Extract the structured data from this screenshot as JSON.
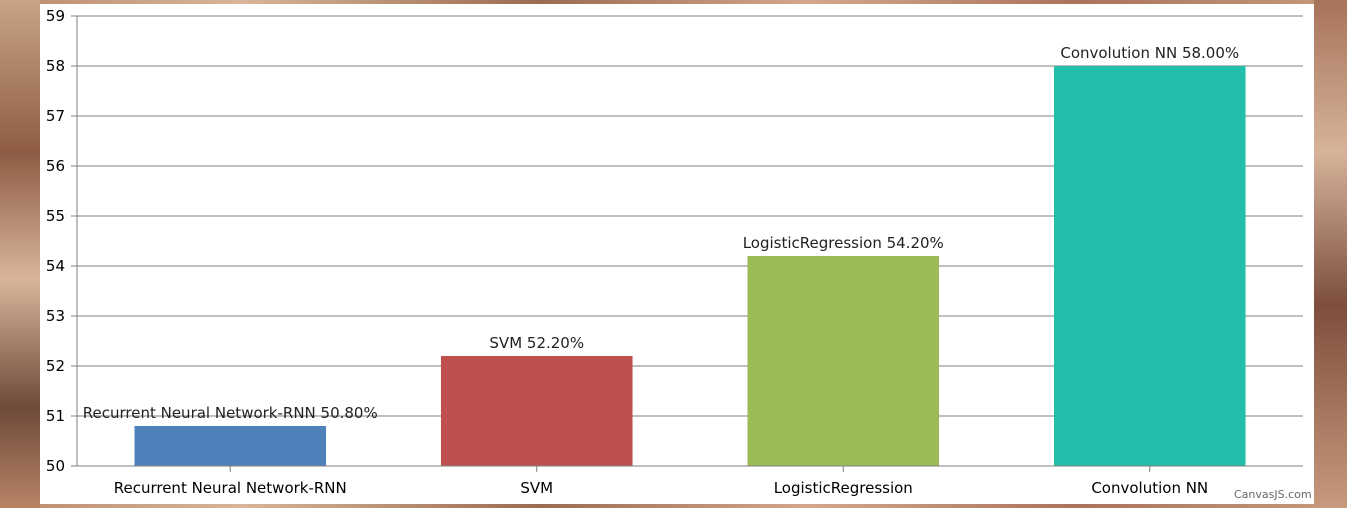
{
  "chart_data": {
    "type": "bar",
    "categories": [
      "Recurrent Neural Network-RNN",
      "SVM",
      "LogisticRegression",
      "Convolution NN"
    ],
    "values": [
      50.8,
      52.2,
      54.2,
      58.0
    ],
    "data_labels": [
      "Recurrent Neural Network-RNN 50.80%",
      "SVM 52.20%",
      "LogisticRegression 54.20%",
      "Convolution NN 58.00%"
    ],
    "colors": [
      "#4f81bc",
      "#c0504e",
      "#9bbb58",
      "#23bfaa"
    ],
    "y_ticks": [
      "50",
      "51",
      "52",
      "53",
      "54",
      "55",
      "56",
      "57",
      "58",
      "59"
    ],
    "ylim": [
      50,
      59
    ],
    "grid": true,
    "title": "",
    "xlabel": "",
    "ylabel": ""
  },
  "credits": "CanvasJS.com"
}
